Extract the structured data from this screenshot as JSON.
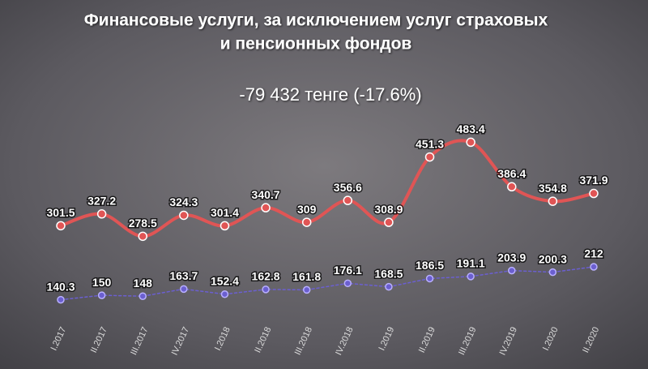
{
  "chart_data": {
    "type": "line",
    "title": [
      "Финансовые услуги, за исключением услуг страховых",
      "и пенсионных фондов"
    ],
    "subtitle": "-79 432 тенге (-17.6%)",
    "categories": [
      "I.2017",
      "II.2017",
      "III.2017",
      "IV.2017",
      "I.2018",
      "II.2018",
      "III.2018",
      "IV.2018",
      "I.2019",
      "II.2019",
      "III.2019",
      "IV.2019",
      "I.2020",
      "II.2020"
    ],
    "ylim": [
      0,
      500
    ],
    "series": [
      {
        "color": "#e05555",
        "values": [
          301.5,
          327.2,
          278.5,
          324.3,
          301.4,
          340.7,
          309,
          356.6,
          308.9,
          451.3,
          483.4,
          386.4,
          354.8,
          371.9
        ]
      },
      {
        "color": "#6b5fd0",
        "dashed": true,
        "values": [
          140.3,
          150,
          148,
          163.7,
          152.4,
          162.8,
          161.8,
          176.1,
          168.5,
          186.5,
          191.1,
          203.9,
          200.3,
          212
        ]
      }
    ]
  }
}
